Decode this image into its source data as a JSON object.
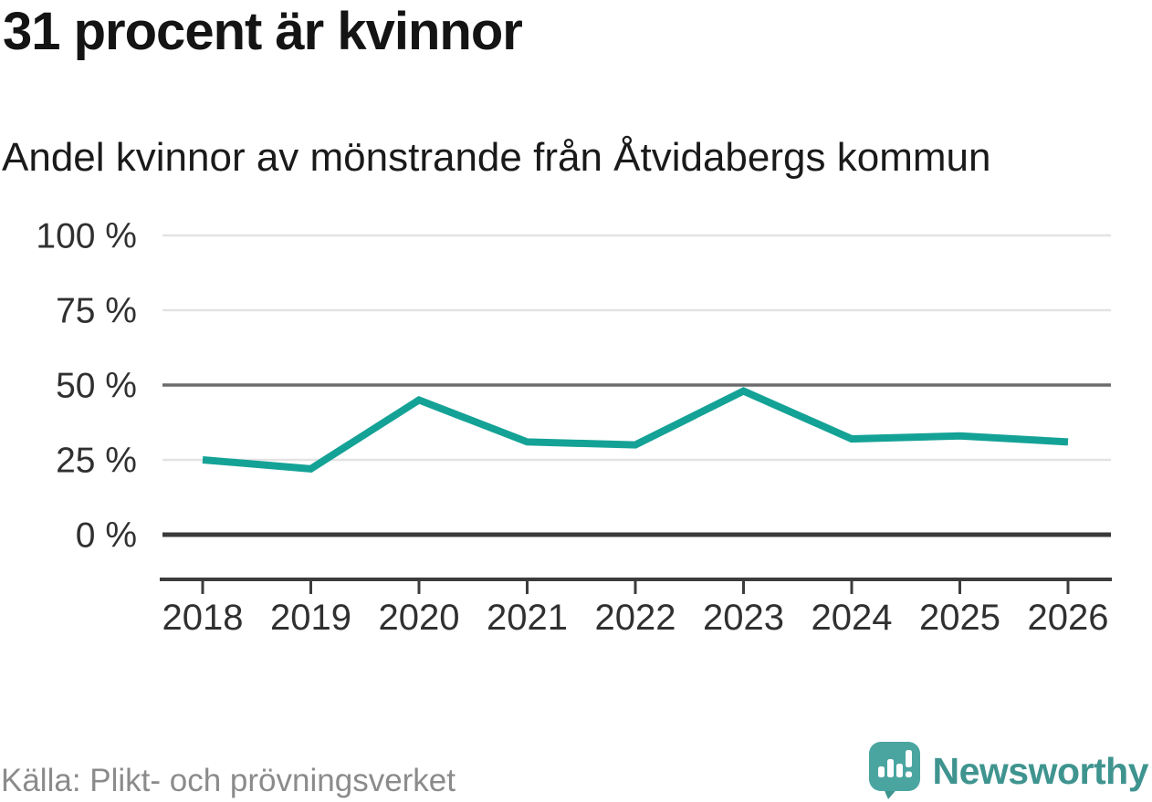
{
  "header": {
    "title": "31 procent är kvinnor",
    "subtitle": "Andel kvinnor av mönstrande från Åtvidabergs kommun"
  },
  "chart_data": {
    "type": "line",
    "title": "31 procent är kvinnor",
    "subtitle": "Andel kvinnor av mönstrande från Åtvidabergs kommun",
    "x": [
      2018,
      2019,
      2020,
      2021,
      2022,
      2023,
      2024,
      2025,
      2026
    ],
    "series": [
      {
        "name": "andel-kvinnor",
        "values": [
          25,
          22,
          45,
          31,
          30,
          48,
          32,
          33,
          31
        ]
      }
    ],
    "unit": "%",
    "ylim": [
      0,
      100
    ],
    "yticks": [
      0,
      25,
      50,
      75,
      100
    ],
    "ytick_suffix": " %",
    "emphasized_ytick": 50,
    "baseline_ytick": 0,
    "grid": true,
    "legend": "none",
    "colors": {
      "line": "#14a296",
      "grid": "#e3e3e3",
      "grid_emphasis": "#6b6b6b",
      "baseline": "#3a3a3a",
      "axis": "#3c3c3c",
      "tick_label": "#303030"
    }
  },
  "footer": {
    "source": "Källa: Plikt- och prövningsverket",
    "brand": "Newsworthy",
    "brand_color": "#3f948f",
    "logo_bubble_color": "#4aa5a0",
    "logo_tail_color": "#3e948e",
    "logo_glyph_color": "#ffffff"
  }
}
